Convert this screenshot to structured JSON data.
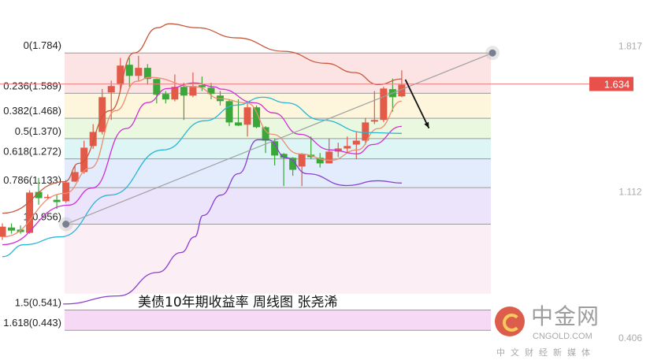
{
  "chart_data": {
    "type": "candlestick",
    "title": "美债10年期收益率  周线图  张尧浠",
    "ylim": [
      0.28,
      2.04
    ],
    "grid": false,
    "colors": {
      "up": "#e35a48",
      "down": "#3ba73b",
      "upper_band": "#c8583c",
      "ma_short": "#ef8c6f",
      "ma_mid": "#d12fd6",
      "ma_long": "#27b6d6",
      "lower_band": "#8a3fd1",
      "trendline": "#a0a0a0",
      "price_line": "#f08080",
      "price_box": "#e8504c"
    },
    "candles": [
      [
        0.895,
        0.96,
        0.88,
        0.944
      ],
      [
        0.94,
        0.96,
        0.91,
        0.925
      ],
      [
        0.93,
        0.95,
        0.91,
        0.918
      ],
      [
        0.914,
        1.12,
        0.91,
        1.109
      ],
      [
        1.112,
        1.18,
        1.05,
        1.082
      ],
      [
        1.085,
        1.1,
        1.08,
        1.088
      ],
      [
        1.074,
        1.1,
        1.03,
        1.063
      ],
      [
        1.067,
        1.17,
        1.06,
        1.158
      ],
      [
        1.162,
        1.24,
        1.16,
        1.208
      ],
      [
        1.208,
        1.36,
        1.2,
        1.326
      ],
      [
        1.334,
        1.44,
        1.32,
        1.402
      ],
      [
        1.402,
        1.61,
        1.39,
        1.57
      ],
      [
        1.593,
        1.65,
        1.46,
        1.624
      ],
      [
        1.631,
        1.76,
        1.6,
        1.723
      ],
      [
        1.727,
        1.76,
        1.62,
        1.673
      ],
      [
        1.673,
        1.77,
        1.65,
        1.712
      ],
      [
        1.712,
        1.73,
        1.63,
        1.658
      ],
      [
        1.658,
        1.66,
        1.54,
        1.582
      ],
      [
        1.586,
        1.6,
        1.54,
        1.559
      ],
      [
        1.559,
        1.68,
        1.55,
        1.62
      ],
      [
        1.62,
        1.64,
        1.46,
        1.578
      ],
      [
        1.578,
        1.69,
        1.57,
        1.624
      ],
      [
        1.628,
        1.67,
        1.6,
        1.618
      ],
      [
        1.616,
        1.64,
        1.56,
        1.586
      ],
      [
        1.578,
        1.6,
        1.53,
        1.551
      ],
      [
        1.551,
        1.56,
        1.43,
        1.448
      ],
      [
        1.448,
        1.56,
        1.43,
        1.433
      ],
      [
        1.437,
        1.54,
        1.38,
        1.521
      ],
      [
        1.521,
        1.53,
        1.42,
        1.425
      ],
      [
        1.425,
        1.43,
        1.3,
        1.36
      ],
      [
        1.357,
        1.37,
        1.24,
        1.288
      ],
      [
        1.296,
        1.3,
        1.14,
        1.277
      ],
      [
        1.277,
        1.28,
        1.19,
        1.219
      ],
      [
        1.235,
        1.3,
        1.14,
        1.296
      ],
      [
        1.292,
        1.38,
        1.27,
        1.28
      ],
      [
        1.277,
        1.3,
        1.23,
        1.25
      ],
      [
        1.25,
        1.37,
        1.25,
        1.307
      ],
      [
        1.307,
        1.35,
        1.28,
        1.322
      ],
      [
        1.322,
        1.38,
        1.3,
        1.334
      ],
      [
        1.341,
        1.4,
        1.27,
        1.36
      ],
      [
        1.36,
        1.47,
        1.34,
        1.448
      ],
      [
        1.452,
        1.6,
        1.44,
        1.46
      ],
      [
        1.46,
        1.62,
        1.45,
        1.612
      ],
      [
        1.609,
        1.66,
        1.5,
        1.57
      ],
      [
        1.574,
        1.7,
        1.57,
        1.631
      ]
    ],
    "lines": {
      "upper_band": [
        [
          0,
          1.009
        ],
        [
          6.9,
          1.162
        ],
        [
          8.4,
          1.25
        ],
        [
          11.9,
          1.505
        ],
        [
          14.5,
          1.784
        ],
        [
          17.1,
          1.906
        ],
        [
          18.4,
          1.925
        ],
        [
          21.4,
          1.906
        ],
        [
          25.8,
          1.857
        ],
        [
          31,
          1.792
        ],
        [
          35.6,
          1.734
        ],
        [
          38.8,
          1.689
        ],
        [
          41.4,
          1.631
        ],
        [
          44,
          1.658
        ]
      ],
      "ma_short": [
        [
          0,
          0.895
        ],
        [
          6.9,
          1.105
        ],
        [
          9.7,
          1.227
        ],
        [
          12.5,
          1.505
        ],
        [
          14.8,
          1.647
        ],
        [
          16.2,
          1.666
        ],
        [
          21.4,
          1.62
        ],
        [
          24,
          1.563
        ],
        [
          26.9,
          1.543
        ],
        [
          29.7,
          1.391
        ],
        [
          32.7,
          1.296
        ],
        [
          36.2,
          1.265
        ],
        [
          39.1,
          1.315
        ],
        [
          41.4,
          1.418
        ],
        [
          44,
          1.551
        ]
      ],
      "ma_mid": [
        [
          0,
          0.857
        ],
        [
          7.3,
          1.048
        ],
        [
          9.9,
          1.131
        ],
        [
          13.6,
          1.418
        ],
        [
          16,
          1.544
        ],
        [
          18.2,
          1.612
        ],
        [
          21.2,
          1.639
        ],
        [
          23.4,
          1.62
        ],
        [
          24.1,
          1.609
        ],
        [
          27.8,
          1.543
        ],
        [
          29.9,
          1.494
        ],
        [
          32.7,
          1.391
        ],
        [
          36.2,
          1.315
        ],
        [
          39.1,
          1.296
        ],
        [
          40.8,
          1.341
        ],
        [
          44,
          1.429
        ]
      ],
      "ma_long": [
        [
          0,
          0.799
        ],
        [
          2.4,
          0.857
        ],
        [
          6.4,
          0.895
        ],
        [
          11.9,
          1.097
        ],
        [
          17.7,
          1.315
        ],
        [
          22.3,
          1.456
        ],
        [
          25.8,
          1.532
        ],
        [
          28.7,
          1.57
        ],
        [
          31.3,
          1.543
        ],
        [
          35.1,
          1.46
        ],
        [
          40,
          1.399
        ],
        [
          44,
          1.395
        ]
      ],
      "lower_band": [
        [
          6.7,
          0.57
        ],
        [
          12.8,
          0.609
        ],
        [
          17.1,
          0.723
        ],
        [
          19.7,
          0.819
        ],
        [
          21.2,
          0.895
        ],
        [
          22.1,
          0.998
        ],
        [
          24.1,
          1.097
        ],
        [
          26,
          1.2
        ],
        [
          28.1,
          1.364
        ],
        [
          29.3,
          1.364
        ],
        [
          31.3,
          1.277
        ],
        [
          33.6,
          1.2
        ],
        [
          37.9,
          1.143
        ],
        [
          41.4,
          1.166
        ],
        [
          44,
          1.155
        ]
      ]
    },
    "fibonacci": [
      {
        "label": "0(1.784)",
        "value": 1.784,
        "fill": "#fde4e4"
      },
      {
        "label": "0.236(1.589)",
        "value": 1.589,
        "fill": "#fdf6dc"
      },
      {
        "label": "0.382(1.468)",
        "value": 1.468,
        "fill": "#eaf8df"
      },
      {
        "label": "0.5(1.370)",
        "value": 1.37,
        "fill": "#def5f5"
      },
      {
        "label": "0.618(1.272)",
        "value": 1.272,
        "fill": "#e2ecfd"
      },
      {
        "label": "0.786(1.133)",
        "value": 1.133,
        "fill": "#ece4fb"
      },
      {
        "label": "1(0.956)",
        "value": 0.956,
        "fill": "#fbeef5"
      },
      {
        "label": "1.5(0.541)",
        "value": 0.541,
        "fill": "#f6d9f5"
      },
      {
        "label": "1.618(0.443)",
        "value": 0.443,
        "fill": null
      }
    ],
    "trendline": {
      "from": [
        7,
        0.956
      ],
      "to": [
        54,
        1.784
      ]
    },
    "arrow": {
      "from": [
        44.4,
        1.655
      ],
      "to": [
        47,
        1.42
      ]
    },
    "current_price": "1.634",
    "current_price_value": 1.634,
    "right_axis_labels": [
      {
        "label": "1.817",
        "value": 1.817
      },
      {
        "label": "1.112",
        "value": 1.112
      },
      {
        "label": "0.406",
        "value": 0.406
      }
    ]
  },
  "watermark": {
    "name": "中金网",
    "domain": "CNGOLD.COM",
    "slogan": "中文财经新媒体"
  }
}
